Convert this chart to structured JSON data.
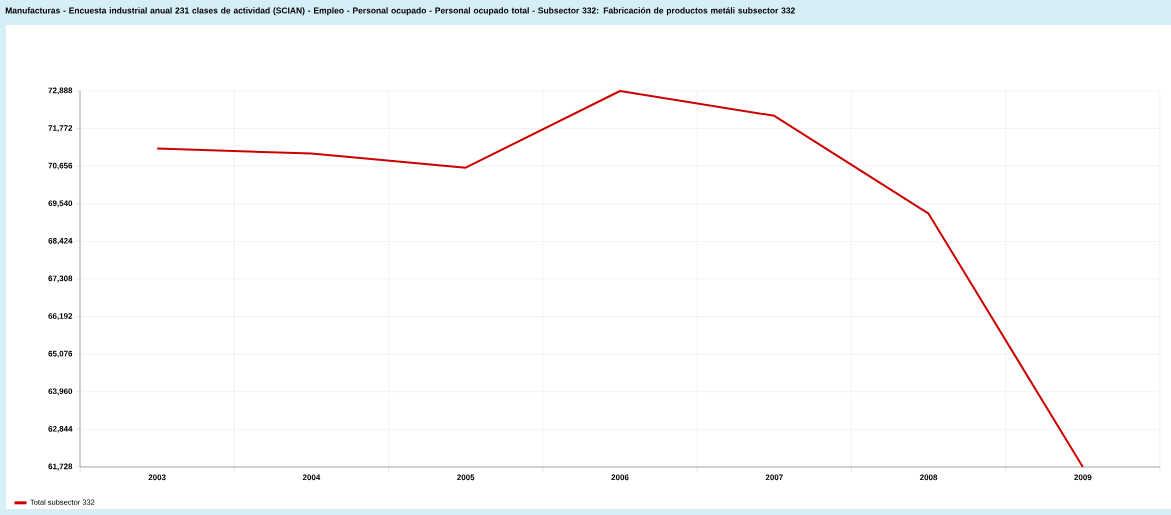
{
  "chart_data": {
    "type": "line",
    "title": "Manufacturas - Encuesta industrial anual 231 clases de actividad (SCIAN) - Empleo - Personal ocupado - Personal ocupado total - Subsector 332: Fabricación de productos metáli subsector 332",
    "categories": [
      "2003",
      "2004",
      "2005",
      "2006",
      "2007",
      "2008",
      "2009"
    ],
    "series": [
      {
        "name": "Total subsector 332",
        "color": "#cc0000",
        "values": [
          71179,
          71032,
          70613,
          72888,
          72151,
          69247,
          61728
        ]
      }
    ],
    "ylim": [
      61728,
      72888
    ],
    "yticks": [
      {
        "value": 61728,
        "label": "61,728"
      },
      {
        "value": 62844,
        "label": "62,844"
      },
      {
        "value": 63960,
        "label": "63,960"
      },
      {
        "value": 65076,
        "label": "65,076"
      },
      {
        "value": 66192,
        "label": "66,192"
      },
      {
        "value": 67308,
        "label": "67,308"
      },
      {
        "value": 68424,
        "label": "68,424"
      },
      {
        "value": 69540,
        "label": "69,540"
      },
      {
        "value": 70656,
        "label": "70,656"
      },
      {
        "value": 71772,
        "label": "71,772"
      },
      {
        "value": 72888,
        "label": "72,888"
      }
    ],
    "grid": true,
    "legend": "bottom left",
    "marker": "none",
    "line_style": "solid"
  }
}
